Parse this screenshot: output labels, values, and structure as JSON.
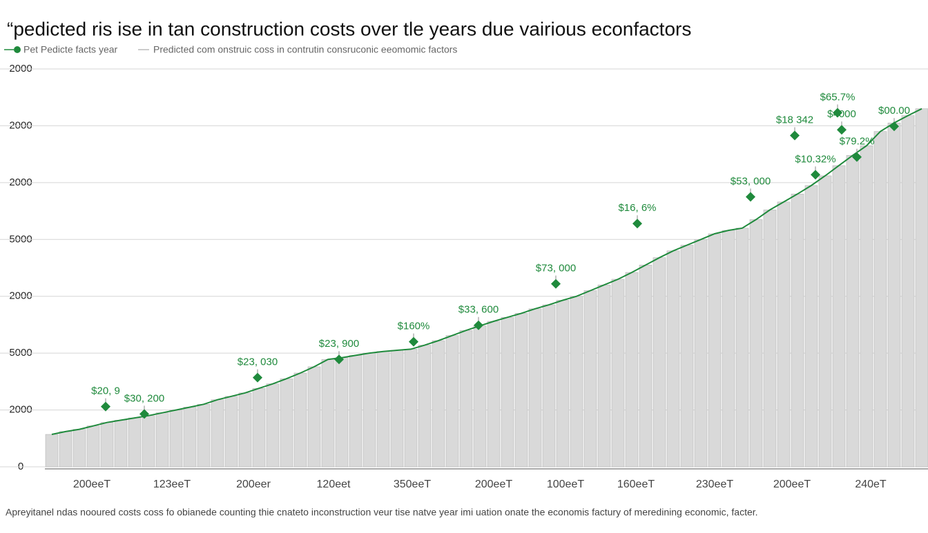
{
  "chart_data": {
    "type": "bar",
    "title": "“pedicted ris ise in tan construction costs over tle years due vairious econfactors",
    "legend": [
      "Pet Pedicte facts year",
      "Predicted com onstruic coss in contrutin consruconic eeomomic factors"
    ],
    "footnote": "Apreyitanel ndas nooured costs coss fo obianede counting thie cnateto inconstruction veur tise natve year imi uation onate the economis factury of meredining economic, facter.",
    "x": [
      0,
      1,
      2,
      3,
      4,
      5,
      6,
      7,
      8,
      9,
      10,
      11,
      12,
      13,
      14,
      15,
      16,
      17,
      18,
      19,
      20,
      21,
      22,
      23,
      24,
      25,
      26,
      27,
      28,
      29,
      30,
      31,
      32,
      33,
      34,
      35,
      36,
      37,
      38,
      39,
      40,
      41,
      42,
      43,
      44,
      45,
      46,
      47,
      48,
      49,
      50,
      51,
      52,
      53,
      54,
      55,
      56,
      57,
      58,
      59,
      60,
      61,
      62,
      63
    ],
    "values": [
      57,
      62,
      66,
      72,
      78,
      82,
      86,
      90,
      95,
      100,
      105,
      110,
      118,
      124,
      130,
      138,
      146,
      155,
      165,
      176,
      189,
      192,
      196,
      200,
      203,
      205,
      207,
      214,
      222,
      231,
      240,
      248,
      256,
      263,
      270,
      278,
      285,
      293,
      300,
      310,
      320,
      330,
      342,
      355,
      368,
      380,
      390,
      400,
      410,
      416,
      420,
      435,
      452,
      466,
      480,
      495,
      512,
      530,
      548,
      565,
      590,
      605,
      618,
      630
    ],
    "color": "#d9d9d9",
    "line_color": "#1f8a3c",
    "xlim": [
      0,
      63
    ],
    "xticks": [
      {
        "value": 2.9,
        "label": "200eeT"
      },
      {
        "value": 8.7,
        "label": "123eeT"
      },
      {
        "value": 14.6,
        "label": "200eer"
      },
      {
        "value": 20.4,
        "label": "120eet"
      },
      {
        "value": 26.1,
        "label": "350eeT"
      },
      {
        "value": 32,
        "label": "200eeT"
      },
      {
        "value": 37.2,
        "label": "100eeT"
      },
      {
        "value": 42.3,
        "label": "160eeT"
      },
      {
        "value": 48,
        "label": "230eeT"
      },
      {
        "value": 53.6,
        "label": "200eeT"
      },
      {
        "value": 59.3,
        "label": "240eT"
      }
    ],
    "ylim": [
      0,
      700
    ],
    "yticks": [
      0,
      {
        "value": 100,
        "label": "2000"
      },
      {
        "value": 200,
        "label": "5000"
      },
      {
        "value": 300,
        "label": "2000"
      },
      {
        "value": 400,
        "label": "5000"
      },
      {
        "value": 500,
        "label": "2000"
      },
      {
        "value": 600,
        "label": "2000"
      },
      {
        "value": 700,
        "label": "2000"
      }
    ],
    "grid": true,
    "annotations": [
      {
        "label": "$20, 9",
        "x": 3.9,
        "y": 106
      },
      {
        "label": "$30, 200",
        "x": 6.7,
        "y": 93
      },
      {
        "label": "$23, 030",
        "x": 14.9,
        "y": 157
      },
      {
        "label": "$23, 900",
        "x": 20.8,
        "y": 189
      },
      {
        "label": "$160%",
        "x": 26.2,
        "y": 220
      },
      {
        "label": "$33, 600",
        "x": 30.9,
        "y": 249
      },
      {
        "label": "$73, 000",
        "x": 36.5,
        "y": 322
      },
      {
        "label": "$16, 6%",
        "x": 42.4,
        "y": 428
      },
      {
        "label": "$53, 000",
        "x": 50.6,
        "y": 475
      },
      {
        "label": "$10.32%",
        "x": 55.3,
        "y": 514
      },
      {
        "label": "$18 342",
        "x": 53.8,
        "y": 583
      },
      {
        "label": "$79.2%",
        "x": 58.3,
        "y": 545
      },
      {
        "label": "$4000",
        "x": 57.2,
        "y": 593
      },
      {
        "label": "$65.7%",
        "x": 56.9,
        "y": 623
      },
      {
        "label": "$00.00",
        "x": 61,
        "y": 599
      }
    ]
  }
}
